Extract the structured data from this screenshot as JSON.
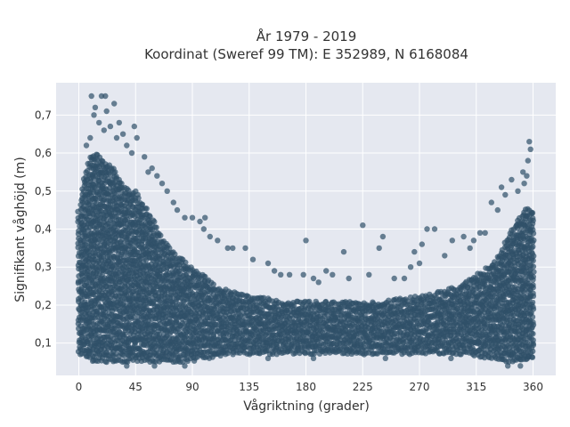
{
  "chart_data": {
    "type": "scatter",
    "title_lines": [
      "År 1979 - 2019",
      "Koordinat (Sweref 99 TM): E 352989, N 6168084"
    ],
    "xlabel": "Vågriktning (grader)",
    "ylabel": "Signifikant våghöjd (m)",
    "xlim": [
      -18,
      378
    ],
    "ylim": [
      0.015,
      0.785
    ],
    "xticks": [
      0,
      45,
      90,
      135,
      180,
      225,
      270,
      315,
      360
    ],
    "xtick_labels": [
      "0",
      "45",
      "90",
      "135",
      "180",
      "225",
      "270",
      "315",
      "360"
    ],
    "yticks": [
      0.1,
      0.2,
      0.3,
      0.4,
      0.5,
      0.6,
      0.7
    ],
    "ytick_labels": [
      "0,1",
      "0,2",
      "0,3",
      "0,4",
      "0,5",
      "0,6",
      "0,7"
    ],
    "grid": true,
    "background": "#e5e8f0",
    "marker_color": "#2f5068",
    "envelope": {
      "x": [
        0,
        5,
        10,
        15,
        20,
        25,
        30,
        35,
        40,
        45,
        50,
        55,
        60,
        65,
        70,
        75,
        80,
        85,
        90,
        95,
        100,
        105,
        110,
        120,
        130,
        140,
        150,
        160,
        170,
        180,
        200,
        220,
        240,
        260,
        280,
        300,
        310,
        320,
        330,
        335,
        340,
        345,
        350,
        355,
        360
      ],
      "y_min": [
        0.07,
        0.06,
        0.05,
        0.05,
        0.05,
        0.05,
        0.05,
        0.05,
        0.05,
        0.05,
        0.05,
        0.05,
        0.05,
        0.05,
        0.05,
        0.05,
        0.05,
        0.05,
        0.05,
        0.06,
        0.06,
        0.06,
        0.06,
        0.07,
        0.07,
        0.07,
        0.07,
        0.07,
        0.07,
        0.07,
        0.07,
        0.07,
        0.07,
        0.07,
        0.07,
        0.07,
        0.07,
        0.06,
        0.06,
        0.05,
        0.05,
        0.05,
        0.05,
        0.05,
        0.06
      ],
      "y_max": [
        0.45,
        0.55,
        0.6,
        0.6,
        0.58,
        0.57,
        0.55,
        0.52,
        0.5,
        0.5,
        0.47,
        0.45,
        0.42,
        0.38,
        0.36,
        0.34,
        0.33,
        0.31,
        0.3,
        0.29,
        0.28,
        0.26,
        0.25,
        0.24,
        0.23,
        0.22,
        0.22,
        0.21,
        0.21,
        0.21,
        0.21,
        0.21,
        0.21,
        0.22,
        0.23,
        0.25,
        0.27,
        0.29,
        0.32,
        0.35,
        0.38,
        0.41,
        0.44,
        0.46,
        0.45
      ]
    },
    "outliers": [
      [
        10,
        0.75
      ],
      [
        18,
        0.75
      ],
      [
        21,
        0.75
      ],
      [
        13,
        0.72
      ],
      [
        28,
        0.73
      ],
      [
        12,
        0.7
      ],
      [
        22,
        0.71
      ],
      [
        16,
        0.68
      ],
      [
        25,
        0.67
      ],
      [
        32,
        0.68
      ],
      [
        20,
        0.66
      ],
      [
        35,
        0.65
      ],
      [
        44,
        0.67
      ],
      [
        30,
        0.64
      ],
      [
        38,
        0.62
      ],
      [
        46,
        0.64
      ],
      [
        6,
        0.62
      ],
      [
        9,
        0.64
      ],
      [
        42,
        0.6
      ],
      [
        52,
        0.59
      ],
      [
        58,
        0.56
      ],
      [
        62,
        0.54
      ],
      [
        66,
        0.52
      ],
      [
        55,
        0.55
      ],
      [
        70,
        0.5
      ],
      [
        75,
        0.47
      ],
      [
        78,
        0.45
      ],
      [
        84,
        0.43
      ],
      [
        90,
        0.43
      ],
      [
        96,
        0.42
      ],
      [
        100,
        0.43
      ],
      [
        99,
        0.4
      ],
      [
        104,
        0.38
      ],
      [
        110,
        0.37
      ],
      [
        118,
        0.35
      ],
      [
        122,
        0.35
      ],
      [
        132,
        0.35
      ],
      [
        138,
        0.32
      ],
      [
        150,
        0.31
      ],
      [
        155,
        0.29
      ],
      [
        160,
        0.28
      ],
      [
        167,
        0.28
      ],
      [
        178,
        0.28
      ],
      [
        180,
        0.37
      ],
      [
        186,
        0.27
      ],
      [
        190,
        0.26
      ],
      [
        196,
        0.29
      ],
      [
        201,
        0.28
      ],
      [
        210,
        0.34
      ],
      [
        214,
        0.27
      ],
      [
        225,
        0.41
      ],
      [
        230,
        0.28
      ],
      [
        238,
        0.35
      ],
      [
        241,
        0.38
      ],
      [
        250,
        0.27
      ],
      [
        258,
        0.27
      ],
      [
        263,
        0.3
      ],
      [
        266,
        0.34
      ],
      [
        270,
        0.31
      ],
      [
        272,
        0.36
      ],
      [
        276,
        0.4
      ],
      [
        282,
        0.4
      ],
      [
        290,
        0.33
      ],
      [
        296,
        0.37
      ],
      [
        305,
        0.38
      ],
      [
        310,
        0.35
      ],
      [
        313,
        0.37
      ],
      [
        318,
        0.39
      ],
      [
        322,
        0.39
      ],
      [
        327,
        0.47
      ],
      [
        332,
        0.45
      ],
      [
        335,
        0.51
      ],
      [
        338,
        0.49
      ],
      [
        343,
        0.53
      ],
      [
        348,
        0.5
      ],
      [
        352,
        0.55
      ],
      [
        355,
        0.54
      ],
      [
        357,
        0.63
      ],
      [
        358,
        0.61
      ],
      [
        356,
        0.58
      ],
      [
        353,
        0.52
      ],
      [
        186,
        0.06
      ],
      [
        150,
        0.06
      ],
      [
        243,
        0.06
      ],
      [
        295,
        0.06
      ],
      [
        340,
        0.04
      ],
      [
        350,
        0.04
      ],
      [
        38,
        0.04
      ],
      [
        60,
        0.04
      ],
      [
        84,
        0.04
      ]
    ]
  }
}
